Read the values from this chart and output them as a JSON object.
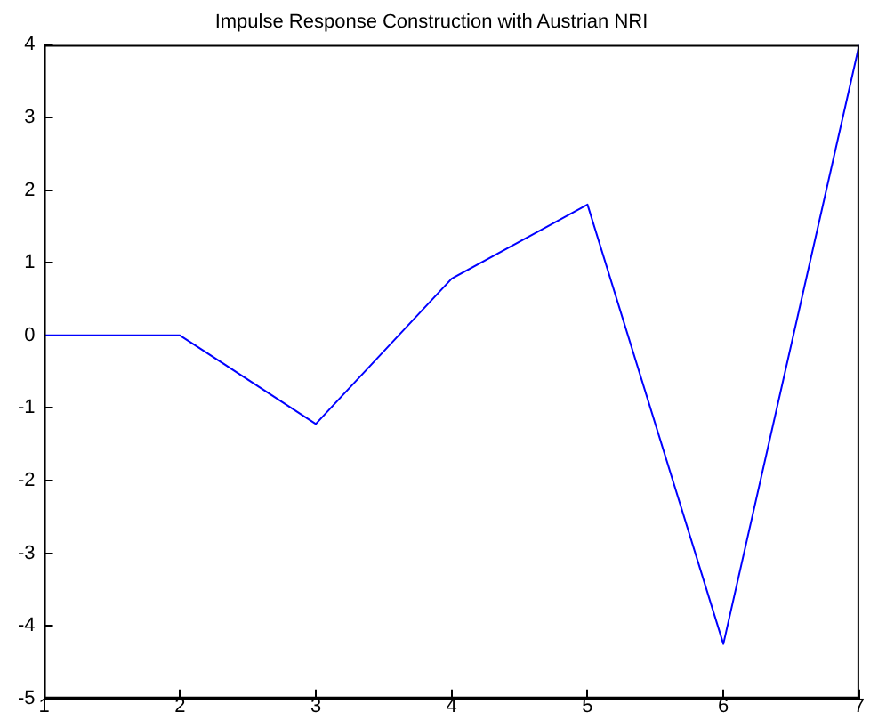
{
  "chart_data": {
    "type": "line",
    "title": "Impulse Response Construction with Austrian NRI",
    "x": [
      1,
      2,
      3,
      4,
      5,
      6,
      7
    ],
    "series": [
      {
        "color": "#0000ff",
        "values": [
          0,
          0,
          -1.22,
          0.78,
          1.8,
          -4.25,
          4
        ]
      }
    ],
    "xlim": [
      1,
      7
    ],
    "xticks": [
      1,
      2,
      3,
      4,
      5,
      6,
      7
    ],
    "ylim": [
      -5,
      4
    ],
    "yticks": [
      -5,
      -4,
      -3,
      -2,
      -1,
      0,
      1,
      2,
      3,
      4
    ],
    "grid": false,
    "legend": false,
    "marker": "none",
    "line_style": "solid"
  }
}
